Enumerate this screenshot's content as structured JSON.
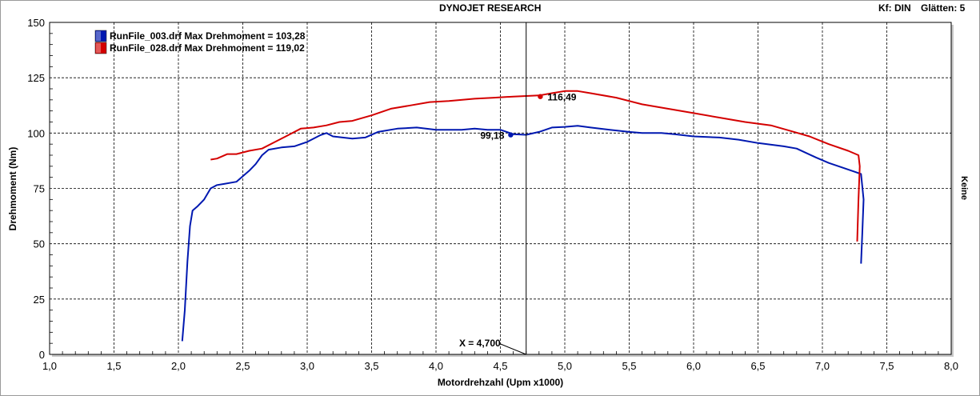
{
  "header": {
    "title": "DYNOJET RESEARCH",
    "correction": "Kf: DIN",
    "smoothing": "Glätten: 5"
  },
  "right_label": "Keine",
  "cursor": {
    "x_label": "X = 4,700"
  },
  "chart_data": {
    "type": "line",
    "title": "DYNOJET RESEARCH",
    "xlabel": "Motordrehzahl (Upm x1000)",
    "ylabel": "Drehmoment (Nm)",
    "xlim": [
      1.0,
      8.0
    ],
    "ylim": [
      0,
      150
    ],
    "x_ticks": [
      "1,0",
      "1,5",
      "2,0",
      "2,5",
      "3,0",
      "3,5",
      "4,0",
      "4,5",
      "5,0",
      "5,5",
      "6,0",
      "6,5",
      "7,0",
      "7,5",
      "8,0"
    ],
    "y_ticks": [
      "0",
      "25",
      "50",
      "75",
      "100",
      "125",
      "150"
    ],
    "grid": true,
    "legend_position": "top-left",
    "cursor_x": 4.7,
    "series": [
      {
        "name": "RunFile_003.drf Max Drehmoment = 103,28",
        "color": "#0018b0",
        "marker_label": "99,18",
        "marker": [
          4.58,
          99.18
        ],
        "points": [
          [
            2.03,
            6
          ],
          [
            2.05,
            20
          ],
          [
            2.07,
            42
          ],
          [
            2.09,
            58
          ],
          [
            2.11,
            65
          ],
          [
            2.15,
            67
          ],
          [
            2.2,
            70
          ],
          [
            2.25,
            75
          ],
          [
            2.3,
            76.5
          ],
          [
            2.35,
            77
          ],
          [
            2.45,
            78
          ],
          [
            2.55,
            83
          ],
          [
            2.6,
            86
          ],
          [
            2.65,
            90
          ],
          [
            2.7,
            92.5
          ],
          [
            2.8,
            93.5
          ],
          [
            2.9,
            94
          ],
          [
            3.0,
            96
          ],
          [
            3.1,
            99
          ],
          [
            3.15,
            100
          ],
          [
            3.2,
            98.5
          ],
          [
            3.35,
            97.5
          ],
          [
            3.45,
            98
          ],
          [
            3.55,
            100.5
          ],
          [
            3.7,
            102
          ],
          [
            3.85,
            102.5
          ],
          [
            4.0,
            101.5
          ],
          [
            4.2,
            101.5
          ],
          [
            4.3,
            102
          ],
          [
            4.4,
            101.5
          ],
          [
            4.5,
            101.5
          ],
          [
            4.6,
            99.5
          ],
          [
            4.7,
            99.2
          ],
          [
            4.8,
            100.5
          ],
          [
            4.9,
            102.5
          ],
          [
            5.0,
            102.8
          ],
          [
            5.1,
            103.3
          ],
          [
            5.2,
            102.5
          ],
          [
            5.35,
            101.5
          ],
          [
            5.5,
            100.5
          ],
          [
            5.6,
            100
          ],
          [
            5.75,
            100
          ],
          [
            5.85,
            99.5
          ],
          [
            6.0,
            98.5
          ],
          [
            6.2,
            98
          ],
          [
            6.35,
            97
          ],
          [
            6.5,
            95.5
          ],
          [
            6.7,
            94
          ],
          [
            6.8,
            93
          ],
          [
            6.95,
            89
          ],
          [
            7.05,
            86.5
          ],
          [
            7.15,
            84.5
          ],
          [
            7.25,
            82.5
          ],
          [
            7.3,
            81.5
          ],
          [
            7.32,
            70
          ],
          [
            7.31,
            55
          ],
          [
            7.3,
            41
          ]
        ]
      },
      {
        "name": "RunFile_028.drf Max Drehmoment = 119,02",
        "color": "#d40000",
        "marker_label": "116,49",
        "marker": [
          4.81,
          116.49
        ],
        "points": [
          [
            2.25,
            88
          ],
          [
            2.3,
            88.5
          ],
          [
            2.38,
            90.5
          ],
          [
            2.45,
            90.5
          ],
          [
            2.55,
            92
          ],
          [
            2.65,
            93
          ],
          [
            2.75,
            96
          ],
          [
            2.85,
            99
          ],
          [
            2.95,
            102
          ],
          [
            3.05,
            102.5
          ],
          [
            3.15,
            103.5
          ],
          [
            3.25,
            105
          ],
          [
            3.35,
            105.5
          ],
          [
            3.5,
            108
          ],
          [
            3.65,
            111
          ],
          [
            3.8,
            112.5
          ],
          [
            3.95,
            114
          ],
          [
            4.1,
            114.5
          ],
          [
            4.3,
            115.5
          ],
          [
            4.45,
            116
          ],
          [
            4.6,
            116.5
          ],
          [
            4.8,
            117
          ],
          [
            4.9,
            118
          ],
          [
            5.0,
            119
          ],
          [
            5.1,
            119
          ],
          [
            5.2,
            118
          ],
          [
            5.4,
            116
          ],
          [
            5.6,
            113
          ],
          [
            5.8,
            111
          ],
          [
            6.0,
            109
          ],
          [
            6.2,
            107
          ],
          [
            6.4,
            105
          ],
          [
            6.6,
            103.5
          ],
          [
            6.75,
            101
          ],
          [
            6.9,
            98.5
          ],
          [
            7.05,
            95
          ],
          [
            7.2,
            92
          ],
          [
            7.28,
            90
          ],
          [
            7.29,
            85
          ],
          [
            7.28,
            70
          ],
          [
            7.27,
            51
          ]
        ]
      }
    ]
  }
}
